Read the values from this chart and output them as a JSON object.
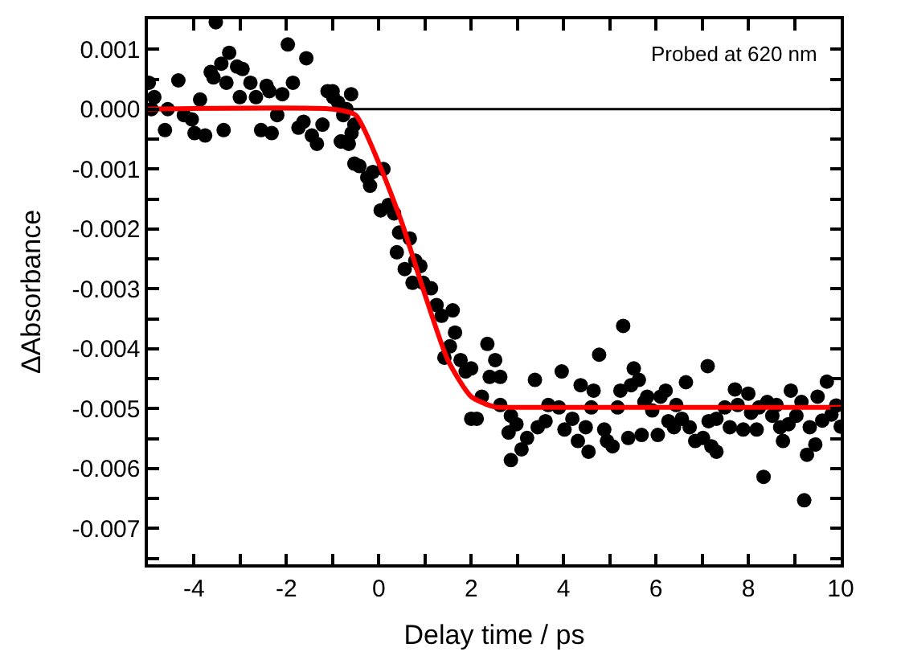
{
  "chart_data": {
    "type": "scatter",
    "xlabel": "Delay time / ps",
    "ylabel": "ΔAbsorbance",
    "annotations": [
      "Probed at 620 nm"
    ],
    "xlim": [
      -5,
      10
    ],
    "ylim": [
      -0.0076,
      0.0015
    ],
    "xticks": [
      {
        "value": -5,
        "label": null
      },
      -4,
      {
        "value": -3,
        "label": null
      },
      -2,
      {
        "value": -1,
        "label": null
      },
      0,
      {
        "value": 1,
        "label": null
      },
      2,
      {
        "value": 3,
        "label": null
      },
      4,
      {
        "value": 5,
        "label": null
      },
      6,
      {
        "value": 7,
        "label": null
      },
      8,
      {
        "value": 9,
        "label": null
      },
      10
    ],
    "yticks": [
      {
        "value": 0.001,
        "label": "0.001"
      },
      {
        "value": 0.0005,
        "label": null
      },
      {
        "value": 0,
        "label": "0.000"
      },
      {
        "value": -0.0005,
        "label": null
      },
      {
        "value": -0.001,
        "label": "-0.001"
      },
      {
        "value": -0.0015,
        "label": null
      },
      {
        "value": -0.002,
        "label": "-0.002"
      },
      {
        "value": -0.0025,
        "label": null
      },
      {
        "value": -0.003,
        "label": "-0.003"
      },
      {
        "value": -0.0035,
        "label": null
      },
      {
        "value": -0.004,
        "label": "-0.004"
      },
      {
        "value": -0.0045,
        "label": null
      },
      {
        "value": -0.005,
        "label": "-0.005"
      },
      {
        "value": -0.0055,
        "label": null
      },
      {
        "value": -0.006,
        "label": "-0.006"
      },
      {
        "value": -0.0065,
        "label": null
      },
      {
        "value": -0.007,
        "label": "-0.007"
      },
      {
        "value": -0.0075,
        "label": null
      }
    ],
    "grid": false,
    "marker": "circle",
    "ref_lines": [
      {
        "axis": "y",
        "value": 0,
        "color": "#000000"
      }
    ],
    "series": [
      {
        "color": "#000000",
        "x": [
          -4.98,
          -4.86,
          -4.92,
          -4.63,
          -4.57,
          -4.34,
          -4.22,
          -4.05,
          -3.99,
          -3.87,
          -3.76,
          -3.64,
          -3.58,
          -3.53,
          -3.41,
          -3.36,
          -3.3,
          -3.24,
          -3.07,
          -3.01,
          -2.95,
          -2.78,
          -2.66,
          -2.55,
          -2.43,
          -2.37,
          -2.32,
          -2.2,
          -2.09,
          -1.97,
          -1.86,
          -1.74,
          -1.63,
          -1.57,
          -1.45,
          -1.34,
          -1.22,
          -1.11,
          -0.99,
          -0.82,
          -0.7,
          -0.59,
          -0.53,
          -1.0,
          -0.88,
          -0.6,
          -0.77,
          -0.82,
          -0.65,
          -0.53,
          -0.42,
          -0.25,
          -0.13,
          0.1,
          -0.19,
          0.04,
          0.21,
          0.33,
          0.44,
          0.67,
          0.39,
          0.56,
          0.79,
          0.9,
          0.73,
          0.96,
          1.13,
          1.25,
          1.6,
          1.36,
          1.65,
          1.54,
          1.42,
          1.77,
          1.88,
          2.0,
          2.35,
          2.52,
          2.4,
          2.63,
          2.23,
          2.0,
          2.12,
          2.63,
          2.86,
          2.98,
          2.81,
          2.86,
          3.09,
          3.21,
          3.38,
          3.44,
          3.61,
          3.67,
          3.9,
          3.96,
          4.02,
          4.19,
          4.31,
          4.37,
          4.48,
          4.54,
          4.6,
          4.65,
          4.77,
          4.88,
          4.94,
          5.06,
          5.17,
          5.23,
          5.29,
          5.4,
          5.46,
          5.52,
          5.63,
          5.69,
          5.75,
          5.81,
          5.92,
          6.04,
          6.1,
          6.21,
          6.27,
          6.39,
          6.44,
          6.56,
          6.65,
          6.73,
          6.85,
          7.02,
          7.12,
          7.14,
          7.2,
          7.31,
          7.31,
          7.49,
          7.6,
          7.71,
          7.77,
          7.89,
          8.0,
          8.06,
          8.18,
          8.23,
          8.33,
          8.41,
          8.52,
          8.61,
          8.69,
          8.75,
          8.87,
          8.92,
          9.04,
          9.15,
          9.21,
          9.27,
          9.33,
          9.45,
          9.5,
          9.6,
          9.7,
          9.8,
          9.9,
          10.0
        ],
        "values": [
          0.00044,
          0.0002,
          0.0,
          -0.00035,
          0.0,
          0.00048,
          -0.0001,
          -0.00017,
          -0.0004,
          0.00016,
          -0.00044,
          0.00062,
          0.00053,
          0.00145,
          0.00076,
          -0.00035,
          0.00044,
          0.00094,
          0.00071,
          0.0002,
          0.00067,
          0.00044,
          0.0002,
          -0.00035,
          0.00039,
          0.0003,
          -0.0004,
          -0.0001,
          0.00025,
          0.00108,
          0.00044,
          -0.00031,
          -0.00021,
          0.00085,
          -0.00044,
          -0.00058,
          -0.00026,
          0.0003,
          0.0002,
          -0.00054,
          0.0,
          -0.0004,
          -0.00091,
          0.0003,
          0.00011,
          0.00025,
          -0.0001,
          -0.00054,
          -0.00058,
          -0.00026,
          -0.00095,
          -0.00114,
          -0.00105,
          -0.001,
          -0.00128,
          -0.00169,
          -0.0016,
          -0.00174,
          -0.00206,
          -0.00216,
          -0.00239,
          -0.00267,
          -0.00253,
          -0.00262,
          -0.0029,
          -0.0029,
          -0.00299,
          -0.00327,
          -0.00336,
          -0.00345,
          -0.00373,
          -0.00396,
          -0.00415,
          -0.00419,
          -0.00438,
          -0.00433,
          -0.00392,
          -0.00419,
          -0.00447,
          -0.00447,
          -0.0048,
          -0.00517,
          -0.00517,
          -0.00494,
          -0.00512,
          -0.00526,
          -0.0054,
          -0.00586,
          -0.00568,
          -0.00549,
          -0.00452,
          -0.00531,
          -0.00521,
          -0.00494,
          -0.00498,
          -0.00438,
          -0.00535,
          -0.00517,
          -0.00554,
          -0.00461,
          -0.00531,
          -0.00572,
          -0.00498,
          -0.0047,
          -0.0041,
          -0.00535,
          -0.00554,
          -0.00563,
          -0.00498,
          -0.0047,
          -0.00362,
          -0.00549,
          -0.00461,
          -0.00433,
          -0.00452,
          -0.00544,
          -0.00489,
          -0.0048,
          -0.00503,
          -0.00544,
          -0.0048,
          -0.0047,
          -0.00521,
          -0.00531,
          -0.00494,
          -0.00517,
          -0.00456,
          -0.00531,
          -0.00554,
          -0.00549,
          -0.00429,
          -0.00521,
          -0.00563,
          -0.00572,
          -0.00517,
          -0.00498,
          -0.00531,
          -0.00468,
          -0.00494,
          -0.00535,
          -0.00475,
          -0.00507,
          -0.00535,
          -0.00498,
          -0.00614,
          -0.00489,
          -0.00512,
          -0.00494,
          -0.00531,
          -0.00554,
          -0.00526,
          -0.0047,
          -0.00512,
          -0.00489,
          -0.00653,
          -0.00577,
          -0.00531,
          -0.0056,
          -0.0048,
          -0.0052,
          -0.00455,
          -0.0051,
          -0.00495,
          -0.0053
        ]
      },
      {
        "type": "line",
        "color": "#ff0000",
        "marker": "none",
        "x": [
          -5,
          -1,
          -0.5,
          0,
          0.5,
          1,
          1.5,
          2,
          2.5,
          3,
          10
        ],
        "values": [
          0,
          0,
          -0.0001,
          -0.0009,
          -0.0019,
          -0.0031,
          -0.0042,
          -0.0048,
          -0.00497,
          -0.00498,
          -0.00498
        ]
      }
    ]
  }
}
